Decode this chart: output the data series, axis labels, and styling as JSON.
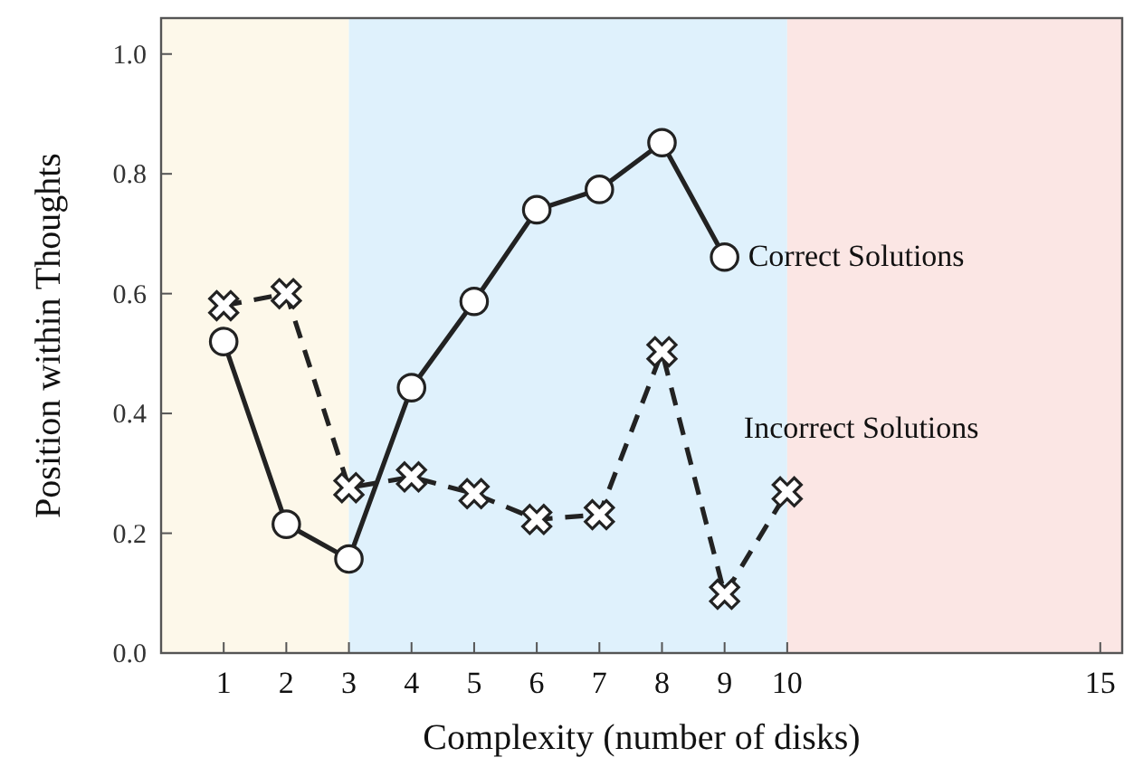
{
  "chart_data": {
    "type": "line",
    "xlabel": "Complexity (number of disks)",
    "ylabel": "Position within Thoughts",
    "x": [
      1,
      2,
      3,
      4,
      5,
      6,
      7,
      8,
      9,
      10
    ],
    "series": [
      {
        "name": "Correct Solutions",
        "color": "#222222",
        "marker": "circle",
        "line_style": "solid",
        "values": [
          0.52,
          0.215,
          0.157,
          0.443,
          0.587,
          0.74,
          0.774,
          0.852,
          0.661,
          null
        ]
      },
      {
        "name": "Incorrect Solutions",
        "color": "#222222",
        "marker": "cross",
        "line_style": "dashed",
        "values": [
          0.58,
          0.6,
          0.276,
          0.294,
          0.266,
          0.223,
          0.231,
          0.503,
          0.098,
          0.269
        ]
      }
    ],
    "xlim": [
      0,
      15.35
    ],
    "xticks": [
      1,
      2,
      3,
      4,
      5,
      6,
      7,
      8,
      9,
      10,
      15
    ],
    "ylim": [
      0,
      1.06
    ],
    "yticks": [
      {
        "value": 0,
        "label": "0.0"
      },
      {
        "value": 0.2,
        "label": "0.2"
      },
      {
        "value": 0.4,
        "label": "0.4"
      },
      {
        "value": 0.6,
        "label": "0.6"
      },
      {
        "value": 0.8,
        "label": "0.8"
      },
      {
        "value": 1,
        "label": "1.0"
      }
    ],
    "bands": [
      {
        "axis": "x",
        "from": 0,
        "to": 3,
        "color": "#fdf8ea"
      },
      {
        "axis": "x",
        "from": 3,
        "to": 10,
        "color": "#dff1fc"
      },
      {
        "axis": "x",
        "from": 10,
        "to": 15.35,
        "color": "#fbe6e4"
      }
    ],
    "grid": false
  }
}
